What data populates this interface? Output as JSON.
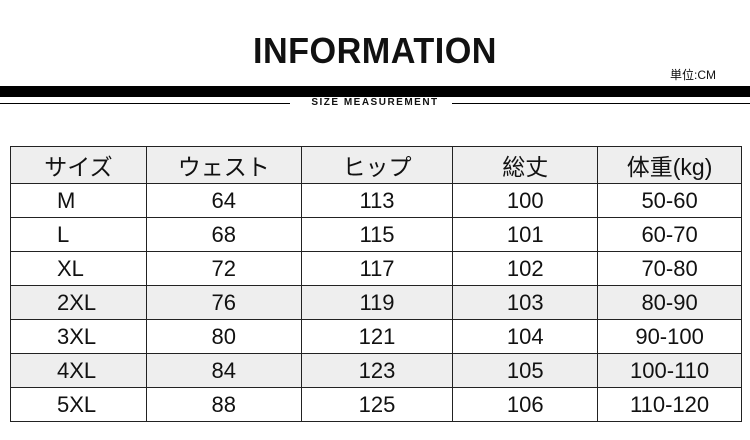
{
  "title": "INFORMATION",
  "unit": "単位:CM",
  "subtitle": "SIZE MEASUREMENT",
  "table": {
    "headers": [
      "サイズ",
      "ウェスト",
      "ヒップ",
      "総丈",
      "体重(kg)"
    ],
    "rows": [
      [
        "M",
        "64",
        "113",
        "100",
        "50-60"
      ],
      [
        "L",
        "68",
        "115",
        "101",
        "60-70"
      ],
      [
        "XL",
        "72",
        "117",
        "102",
        "70-80"
      ],
      [
        "2XL",
        "76",
        "119",
        "103",
        "80-90"
      ],
      [
        "3XL",
        "80",
        "121",
        "104",
        "90-100"
      ],
      [
        "4XL",
        "84",
        "123",
        "105",
        "100-110"
      ],
      [
        "5XL",
        "88",
        "125",
        "106",
        "110-120"
      ]
    ]
  }
}
